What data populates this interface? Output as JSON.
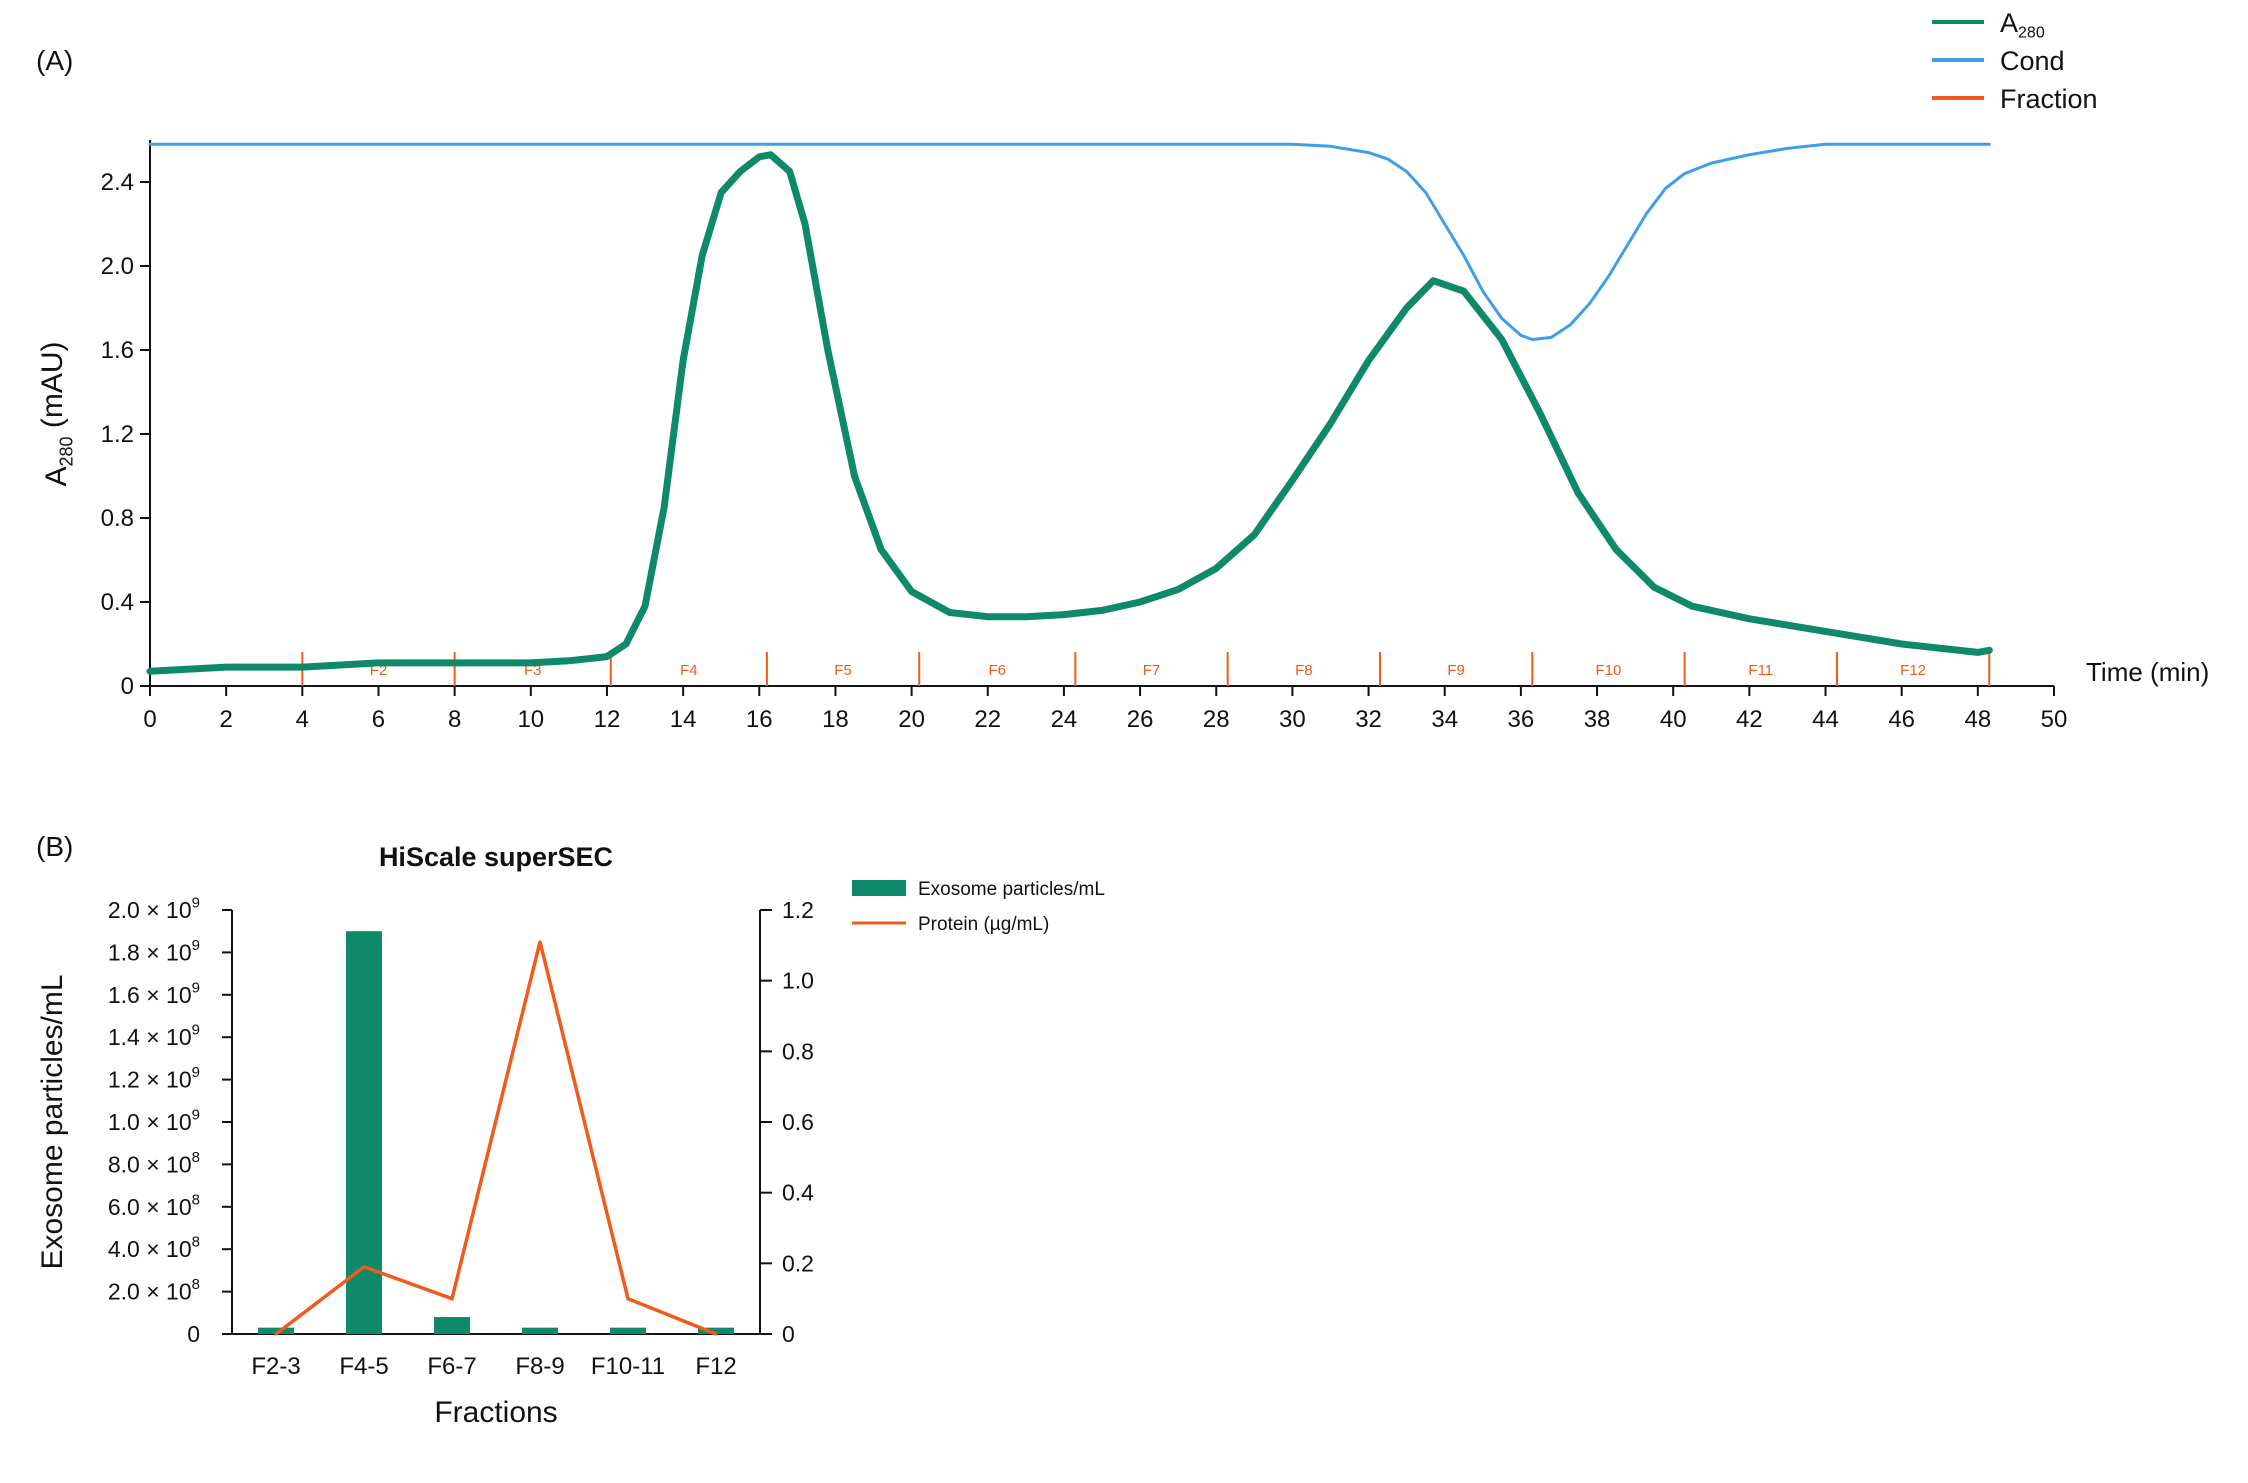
{
  "chart_data": [
    {
      "panel_label": "(A)",
      "type": "line",
      "xlabel": "Time (min)",
      "ylabel_main": "A",
      "ylabel_sub": "280",
      "ylabel_unit": " (mAU)",
      "xlim": [
        0,
        50
      ],
      "ylim": [
        0,
        2.6
      ],
      "xticks": [
        0,
        2,
        4,
        6,
        8,
        10,
        12,
        14,
        16,
        18,
        20,
        22,
        24,
        26,
        28,
        30,
        32,
        34,
        36,
        38,
        40,
        42,
        44,
        46,
        48,
        50
      ],
      "yticks": [
        0,
        0.4,
        0.8,
        1.2,
        1.6,
        2.0,
        2.4
      ],
      "ytick_labels": [
        "0",
        "0.4",
        "0.8",
        "1.2",
        "1.6",
        "2.0",
        "2.4"
      ],
      "legend": [
        {
          "main": "A",
          "sub": "280",
          "color": "#0e8a6a"
        },
        {
          "main": "Cond",
          "sub": "",
          "color": "#3f9ee8"
        },
        {
          "main": "Fraction",
          "sub": "",
          "color": "#f05a1a"
        }
      ],
      "series": [
        {
          "name": "A280",
          "color": "#0e8a6a",
          "x": [
            0,
            2,
            4,
            6,
            8,
            10,
            11,
            12,
            12.5,
            13,
            13.5,
            14,
            14.5,
            15,
            15.5,
            16,
            16.3,
            16.8,
            17.2,
            17.8,
            18.5,
            19.2,
            20,
            21,
            22,
            23,
            24,
            25,
            26,
            27,
            28,
            29,
            30,
            31,
            32,
            33,
            33.7,
            34.5,
            35.5,
            36.5,
            37.5,
            38.5,
            39.5,
            40.5,
            42,
            44,
            46,
            48,
            48.3
          ],
          "y": [
            0.07,
            0.09,
            0.09,
            0.11,
            0.11,
            0.11,
            0.12,
            0.14,
            0.2,
            0.38,
            0.85,
            1.55,
            2.05,
            2.35,
            2.45,
            2.52,
            2.53,
            2.45,
            2.2,
            1.6,
            1.0,
            0.65,
            0.45,
            0.35,
            0.33,
            0.33,
            0.34,
            0.36,
            0.4,
            0.46,
            0.56,
            0.72,
            0.98,
            1.25,
            1.55,
            1.8,
            1.93,
            1.88,
            1.65,
            1.3,
            0.92,
            0.65,
            0.47,
            0.38,
            0.32,
            0.26,
            0.2,
            0.16,
            0.17
          ]
        },
        {
          "name": "Cond",
          "color": "#3f9ee8",
          "x": [
            0,
            4,
            10,
            20,
            30,
            31,
            32,
            32.5,
            33,
            33.5,
            34,
            34.5,
            35,
            35.5,
            36,
            36.3,
            36.8,
            37.3,
            37.8,
            38.3,
            38.8,
            39.3,
            39.8,
            40.3,
            41,
            42,
            43,
            44,
            46,
            48.3
          ],
          "y": [
            2.58,
            2.58,
            2.58,
            2.58,
            2.58,
            2.57,
            2.54,
            2.51,
            2.45,
            2.35,
            2.2,
            2.05,
            1.88,
            1.75,
            1.67,
            1.65,
            1.66,
            1.72,
            1.82,
            1.95,
            2.1,
            2.25,
            2.37,
            2.44,
            2.49,
            2.53,
            2.56,
            2.58,
            2.58,
            2.58
          ]
        }
      ],
      "fractions": {
        "boundaries": [
          4,
          8,
          12.1,
          16.2,
          20.2,
          24.3,
          28.3,
          32.3,
          36.3,
          40.3,
          44.3,
          48.3
        ],
        "labels": [
          "F2",
          "F3",
          "F4",
          "F5",
          "F6",
          "F7",
          "F8",
          "F9",
          "F10",
          "F11",
          "F12"
        ]
      }
    },
    {
      "panel_label": "(B)",
      "type": "bar",
      "title": "HiScale superSEC",
      "xlabel": "Fractions",
      "ylabel": "Exosome particles/mL",
      "categories": [
        "F2-3",
        "F4-5",
        "F6-7",
        "F8-9",
        "F10-11",
        "F12"
      ],
      "ylim": [
        0,
        2000000000.0
      ],
      "y2lim": [
        0,
        1.2
      ],
      "yticks": [
        0,
        200000000.0,
        400000000.0,
        600000000.0,
        800000000.0,
        1000000000.0,
        1200000000.0,
        1400000000.0,
        1600000000.0,
        1800000000.0,
        2000000000.0
      ],
      "ytick_labels": [
        {
          "mant": "0",
          "exp": ""
        },
        {
          "mant": "2.0 × 10",
          "exp": "8"
        },
        {
          "mant": "4.0 × 10",
          "exp": "8"
        },
        {
          "mant": "6.0 × 10",
          "exp": "8"
        },
        {
          "mant": "8.0 × 10",
          "exp": "8"
        },
        {
          "mant": "1.0 × 10",
          "exp": "9"
        },
        {
          "mant": "1.2 × 10",
          "exp": "9"
        },
        {
          "mant": "1.4 × 10",
          "exp": "9"
        },
        {
          "mant": "1.6 × 10",
          "exp": "9"
        },
        {
          "mant": "1.8 × 10",
          "exp": "9"
        },
        {
          "mant": "2.0 × 10",
          "exp": "9"
        }
      ],
      "y2ticks": [
        0,
        0.2,
        0.4,
        0.6,
        0.8,
        1.0,
        1.2
      ],
      "y2tick_labels": [
        "0",
        "0.2",
        "0.4",
        "0.6",
        "0.8",
        "1.0",
        "1.2"
      ],
      "series": [
        {
          "name": "Exosome particles/mL",
          "type": "bar",
          "color": "#0e8a6a",
          "axis": "left",
          "values": [
            30000000.0,
            1900000000.0,
            80000000.0,
            30000000.0,
            30000000.0,
            30000000.0
          ]
        },
        {
          "name": "Protein (µg/mL)",
          "type": "line",
          "color": "#f05a1a",
          "axis": "right",
          "values": [
            0.0,
            0.19,
            0.1,
            1.11,
            0.1,
            0.0
          ]
        }
      ],
      "legend_placement": "right"
    }
  ]
}
